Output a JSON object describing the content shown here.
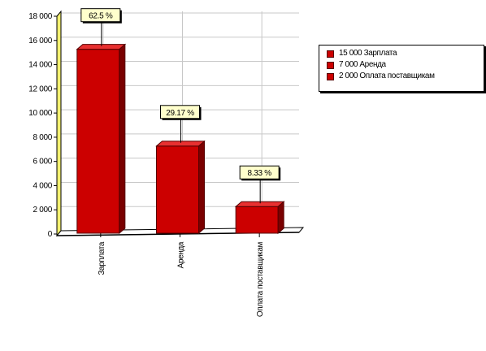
{
  "chart_data": {
    "type": "bar",
    "categories": [
      "Зарплата",
      "Аренда",
      "Оплата поставщикам"
    ],
    "category_labels": [
      "Зарплата",
      "Аренда",
      "Оплата поставщикам"
    ],
    "values": [
      15000,
      7000,
      2000
    ],
    "percent_labels": [
      "62.5 %",
      "29.17 %",
      "8.33 %"
    ],
    "ylim": [
      0,
      18000
    ],
    "yticks": [
      0,
      2000,
      4000,
      6000,
      8000,
      10000,
      12000,
      14000,
      16000,
      18000
    ],
    "ytick_labels": [
      "0",
      "2 000",
      "4 000",
      "6 000",
      "8 000",
      "10 000",
      "12 000",
      "14 000",
      "16 000",
      "18 000"
    ],
    "grid": true,
    "legend_position": "right",
    "title": "",
    "xlabel": "",
    "ylabel": "",
    "bar_color": "#cc0000"
  },
  "legend": {
    "items": [
      {
        "label": "15 000 Зарплата"
      },
      {
        "label": "7 000 Аренда"
      },
      {
        "label": "2 000 Оплата поставщикам"
      }
    ]
  }
}
